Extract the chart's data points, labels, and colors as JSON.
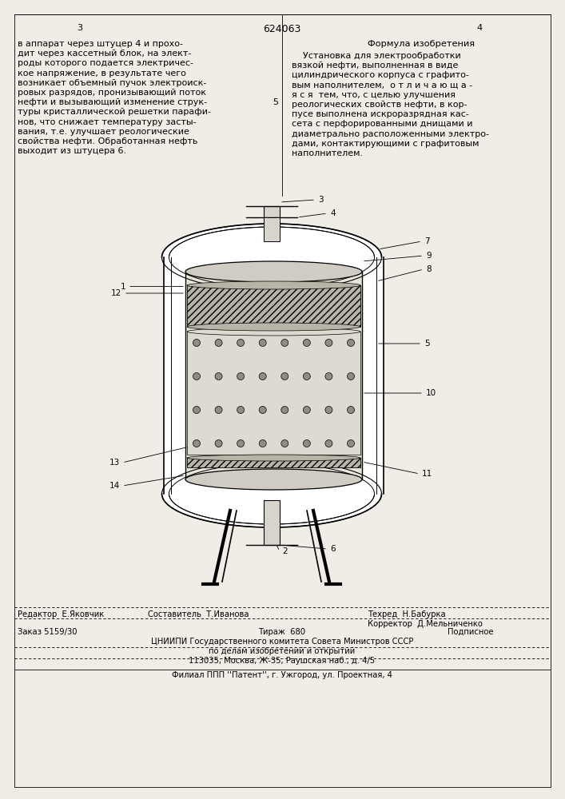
{
  "bg_color": "#f0ede6",
  "page_number_left": "3",
  "page_number_center": "624063",
  "page_number_right": "4",
  "left_text": [
    "в аппарат через штуцер 4 и прохо-",
    "дит через кассетный блок, на элект-",
    "роды которого подается электричес-",
    "кое напряжение, в результате чего",
    "возникает объемный пучок электроиск-",
    "ровых разрядов, пронизывающий поток",
    "нефти и вызывающий изменение струк-",
    "туры кристаллической решетки парафи-",
    "нов, что снижает температуру засты-",
    "вания, т.е. улучшает реологические",
    "свойства нефти. Обработанная нефть",
    "выходит из штуцера 6."
  ],
  "left_line_number": "5",
  "right_title": "Формула изобретения",
  "right_text": [
    "    Установка для электрообработки",
    "вязкой нефти, выполненная в виде",
    "цилиндрического корпуса с графито-",
    "вым наполнителем,  о т л и ч а ю щ а -",
    "я с я  тем, что, с целью улучшения",
    "реологических свойств нефти, в кор-",
    "пусе выполнена искроразрядная кас-",
    "сета с перфорированными днищами и",
    "диаметрально расположенными электро-",
    "дами, контактирующими с графитовым",
    "наполнителем."
  ],
  "footer_editor": "Редактор  Е.Яковчик",
  "footer_composer": "Составитель  Т.Иванова",
  "footer_techred": "Техред  Н.Бабурка",
  "footer_corrector": "Корректор  Д.Мельниченко",
  "footer_order": "Заказ 5159/30",
  "footer_tirazh": "Тираж  680",
  "footer_podpis": "Подписное",
  "footer_org1": "ЦНИИПИ Государственного комитета Совета Министров СССР",
  "footer_org2": "по делам изобретений и открытий",
  "footer_org3": "113035, Москва, Ж-35, Раушская наб., д. 4/5",
  "footer_filial": "Филиал ППП ''Патент'', г. Ужгород, ул. Проектная, 4"
}
